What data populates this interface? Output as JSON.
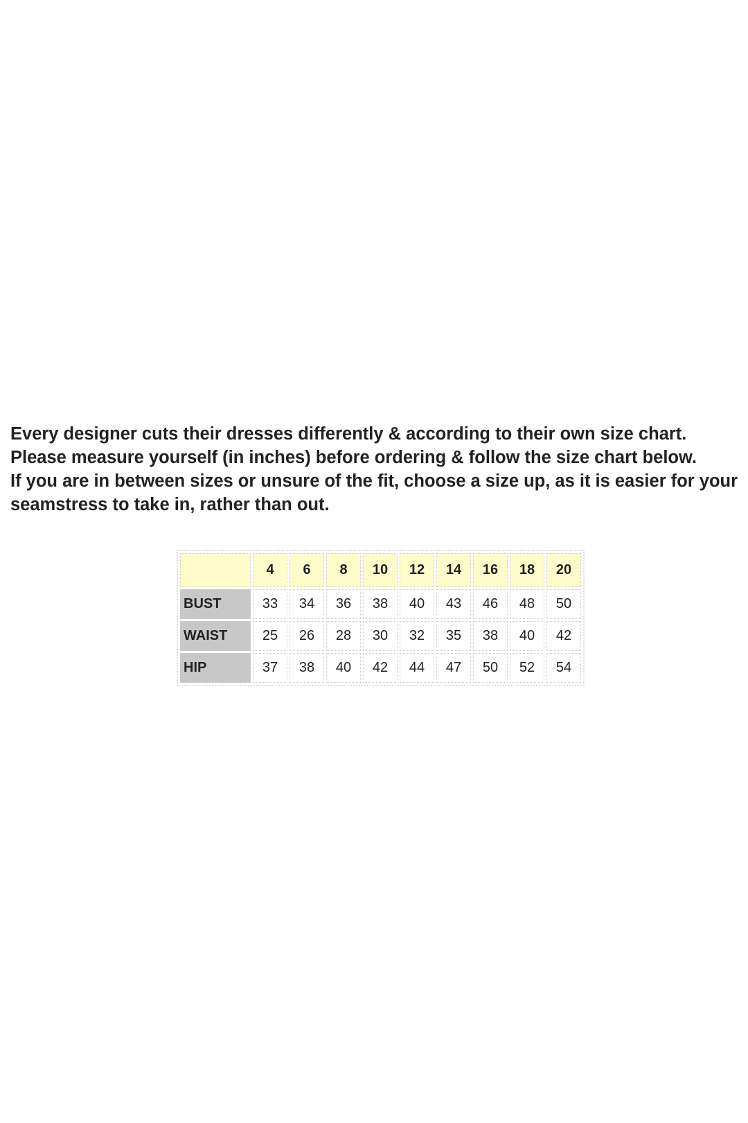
{
  "intro": {
    "paragraph1": "Every designer cuts their dresses differently & according to their own size chart. Please measure yourself (in inches) before ordering & follow the size chart below.",
    "paragraph2": "If you are in between sizes or unsure of the fit, choose a size up, as it is easier for your seamstress to take in, rather than out."
  },
  "size_chart": {
    "sizes": [
      "4",
      "6",
      "8",
      "10",
      "12",
      "14",
      "16",
      "18",
      "20"
    ],
    "rows": [
      {
        "label": "BUST",
        "values": [
          "33",
          "34",
          "36",
          "38",
          "40",
          "43",
          "46",
          "48",
          "50"
        ]
      },
      {
        "label": "WAIST",
        "values": [
          "25",
          "26",
          "28",
          "30",
          "32",
          "35",
          "38",
          "40",
          "42"
        ]
      },
      {
        "label": "HIP",
        "values": [
          "37",
          "38",
          "40",
          "42",
          "44",
          "47",
          "50",
          "52",
          "54"
        ]
      }
    ],
    "colors": {
      "header_bg": "#fffccc",
      "label_bg": "#c8c8c8"
    }
  }
}
